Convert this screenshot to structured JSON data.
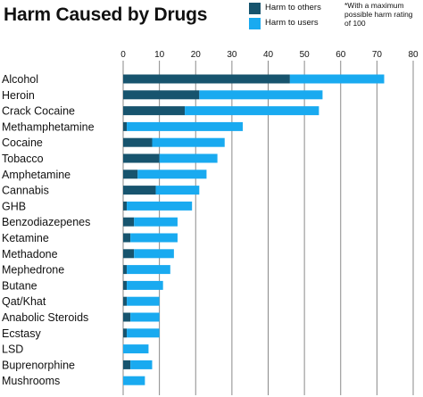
{
  "title": "Harm Caused by Drugs",
  "legend": {
    "others_label": "Harm to others",
    "users_label": "Harm to users"
  },
  "note_lines": [
    "*With a maximum",
    "possible harm rating",
    "of 100"
  ],
  "colors": {
    "harm_to_others": "#17546e",
    "harm_to_users": "#19aaf0",
    "gridline": "#8a8a8a"
  },
  "chart_data": {
    "type": "bar",
    "orientation": "horizontal",
    "stacked": true,
    "title": "Harm Caused by Drugs",
    "xlim": [
      0,
      80
    ],
    "xticks": [
      0,
      10,
      20,
      30,
      40,
      50,
      60,
      70,
      80
    ],
    "x_axis_position": "top",
    "grid": "vertical",
    "legend_position": "top-right",
    "categories": [
      "Alcohol",
      "Heroin",
      "Crack Cocaine",
      "Methamphetamine",
      "Cocaine",
      "Tobacco",
      "Amphetamine",
      "Cannabis",
      "GHB",
      "Benzodiazepenes",
      "Ketamine",
      "Methadone",
      "Mephedrone",
      "Butane",
      "Qat/Khat",
      "Anabolic Steroids",
      "Ecstasy",
      "LSD",
      "Buprenorphine",
      "Mushrooms"
    ],
    "series": [
      {
        "name": "Harm to others",
        "values": [
          46,
          21,
          17,
          1,
          8,
          10,
          4,
          9,
          1,
          3,
          2,
          3,
          1,
          1,
          1,
          2,
          1,
          0,
          2,
          0
        ]
      },
      {
        "name": "Harm to users",
        "values": [
          26,
          34,
          37,
          32,
          20,
          16,
          19,
          12,
          18,
          12,
          13,
          11,
          12,
          10,
          9,
          8,
          9,
          7,
          6,
          6
        ]
      }
    ]
  }
}
